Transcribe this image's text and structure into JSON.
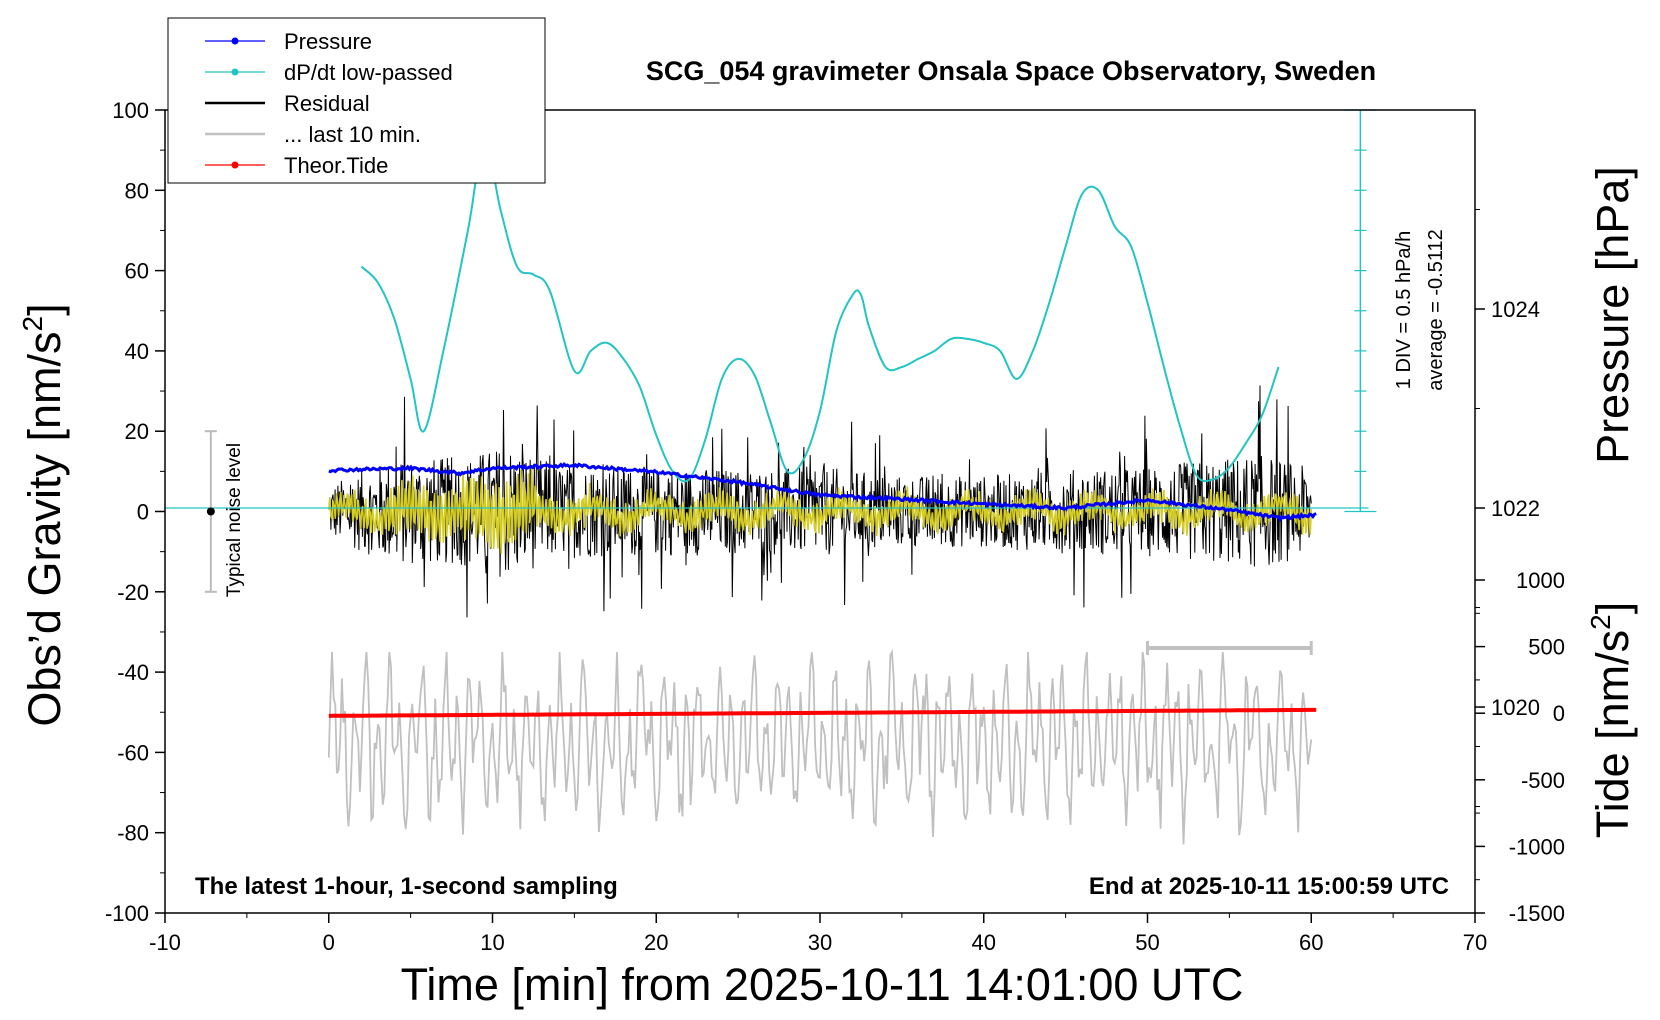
{
  "chart_data": {
    "type": "line",
    "title": "SCG_054 gravimeter Onsala Space Observatory, Sweden",
    "xlabel": "Time [min] from 2025-10-11 14:01:00 UTC",
    "ylabel_left_html": "Obs'd Gravity [nm/s²]",
    "ylabel_left_main": "Obs’d Gravity [nm/s",
    "ylabel_left_sup": "2",
    "ylabel_left_end": "]",
    "ylabel_right_pressure": "Pressure [hPa]",
    "ylabel_right_tide_main": "Tide [nm/s",
    "ylabel_right_tide_sup": "2",
    "ylabel_right_tide_end": "]",
    "xlim": [
      -10,
      70
    ],
    "ylim_left": [
      -100,
      100
    ],
    "x_ticks": [
      "-10",
      "0",
      "10",
      "20",
      "30",
      "40",
      "50",
      "60",
      "70"
    ],
    "x_tick_values": [
      -10,
      0,
      10,
      20,
      30,
      40,
      50,
      60,
      70
    ],
    "y_left_ticks": [
      "100",
      "80",
      "60",
      "40",
      "20",
      "0",
      "-20",
      "-40",
      "-60",
      "-80",
      "-100"
    ],
    "y_left_tick_values": [
      100,
      80,
      60,
      40,
      20,
      0,
      -20,
      -40,
      -60,
      -80,
      -100
    ],
    "pressure_axis": {
      "ticks": [
        "1024",
        "1022",
        "1020"
      ],
      "tick_values": [
        1024,
        1022,
        1020
      ],
      "range_hpa": [
        1017.93,
        1026.0
      ]
    },
    "tide_axis": {
      "ticks": [
        "1000",
        "500",
        "0",
        "-500",
        "-1000",
        "-1500"
      ],
      "tick_values": [
        1000,
        500,
        0,
        -500,
        -1000,
        -1500
      ],
      "range": [
        -1500,
        1000
      ]
    },
    "legend": {
      "placement": "top-left",
      "entries": [
        {
          "label": "Pressure",
          "color": "#0000ff",
          "style": "line-dot"
        },
        {
          "label": "dP/dt low-passed",
          "color": "#22c4c4",
          "style": "line-dot"
        },
        {
          "label": "Residual",
          "color": "#000000",
          "style": "line"
        },
        {
          "label": "... last 10 min.",
          "color": "#c0c0c0",
          "style": "line"
        },
        {
          "label": "Theor.Tide",
          "color": "#ff0000",
          "style": "line-dot"
        }
      ]
    },
    "dpdt_scale": {
      "label_div": "1 DIV = 0.5 hPa/h",
      "label_avg": "average = -0.5112"
    },
    "noise_bar_label": "Typical noise level",
    "bottom_left_text": "The latest 1-hour, 1-second sampling",
    "bottom_right_text": "End at 2025-10-11 15:00:59 UTC",
    "series": [
      {
        "name": "Pressure",
        "color": "#0000ff",
        "axis": "pressure",
        "x": [
          0,
          5,
          8,
          10,
          15,
          20,
          25,
          30,
          35,
          40,
          45,
          50,
          55,
          58,
          60.3
        ],
        "values": [
          1022.38,
          1022.4,
          1022.35,
          1022.4,
          1022.43,
          1022.36,
          1022.26,
          1022.13,
          1022.09,
          1022.04,
          1022.0,
          1022.08,
          1021.98,
          1021.9,
          1021.93
        ]
      },
      {
        "name": "dP/dt low-passed",
        "color": "#22c4c4",
        "axis": "left",
        "x": [
          2,
          3,
          4,
          5,
          5.8,
          7,
          8.5,
          9.5,
          10.5,
          11.5,
          12.5,
          13.5,
          15,
          16,
          17,
          18,
          19,
          20,
          21,
          22,
          23,
          24,
          25,
          26,
          27,
          28,
          29,
          30,
          31,
          32,
          32.5,
          33,
          34,
          35,
          36,
          37,
          38,
          39,
          40,
          41,
          42,
          43,
          44,
          45,
          46,
          47,
          48,
          49,
          50,
          51,
          52,
          53,
          54,
          55,
          56,
          57,
          58
        ],
        "values": [
          61,
          57,
          48,
          33,
          20,
          40,
          70,
          92,
          75,
          61,
          59,
          55,
          35,
          40,
          42,
          38,
          31,
          19,
          10,
          8,
          18,
          33,
          38,
          34,
          22,
          10,
          13,
          25,
          45,
          54,
          54,
          46,
          36,
          36,
          38,
          40,
          43,
          43,
          42,
          40,
          33,
          40,
          52,
          66,
          79,
          80,
          71,
          66,
          52,
          36,
          21,
          9,
          8,
          11,
          17,
          24,
          36
        ]
      },
      {
        "name": "Residual",
        "color": "#000000",
        "axis": "left",
        "x": [
          0,
          60
        ],
        "values": [
          0,
          0
        ],
        "envelope_amplitude": [
          [
            0,
            15
          ],
          [
            4,
            30
          ],
          [
            8,
            30
          ],
          [
            11,
            38
          ],
          [
            14,
            26
          ],
          [
            19,
            25
          ],
          [
            25,
            24
          ],
          [
            30,
            25
          ],
          [
            35,
            20
          ],
          [
            40,
            20
          ],
          [
            46,
            24
          ],
          [
            50,
            25
          ],
          [
            57,
            32
          ],
          [
            60,
            24
          ]
        ]
      },
      {
        "name": "Residual low-passed",
        "color": "#d4cc20",
        "axis": "left",
        "x": [
          0,
          60
        ],
        "values": [
          0,
          0
        ]
      },
      {
        "name": "... last 10 min.",
        "color": "#c0c0c0",
        "axis": "left",
        "x": [
          0,
          60
        ],
        "values": [
          -55,
          -55
        ],
        "range": [
          -90,
          -35
        ]
      },
      {
        "name": "Theor.Tide",
        "color": "#ff0000",
        "axis": "tide",
        "x": [
          0,
          60.3
        ],
        "values": [
          -20,
          25
        ]
      }
    ],
    "noise_level_bar": {
      "x": -7.2,
      "y_center": 0,
      "y_min": -20,
      "y_max": 20
    },
    "last10_bar": {
      "x_start": 50,
      "x_end": 60
    },
    "grid": false
  }
}
